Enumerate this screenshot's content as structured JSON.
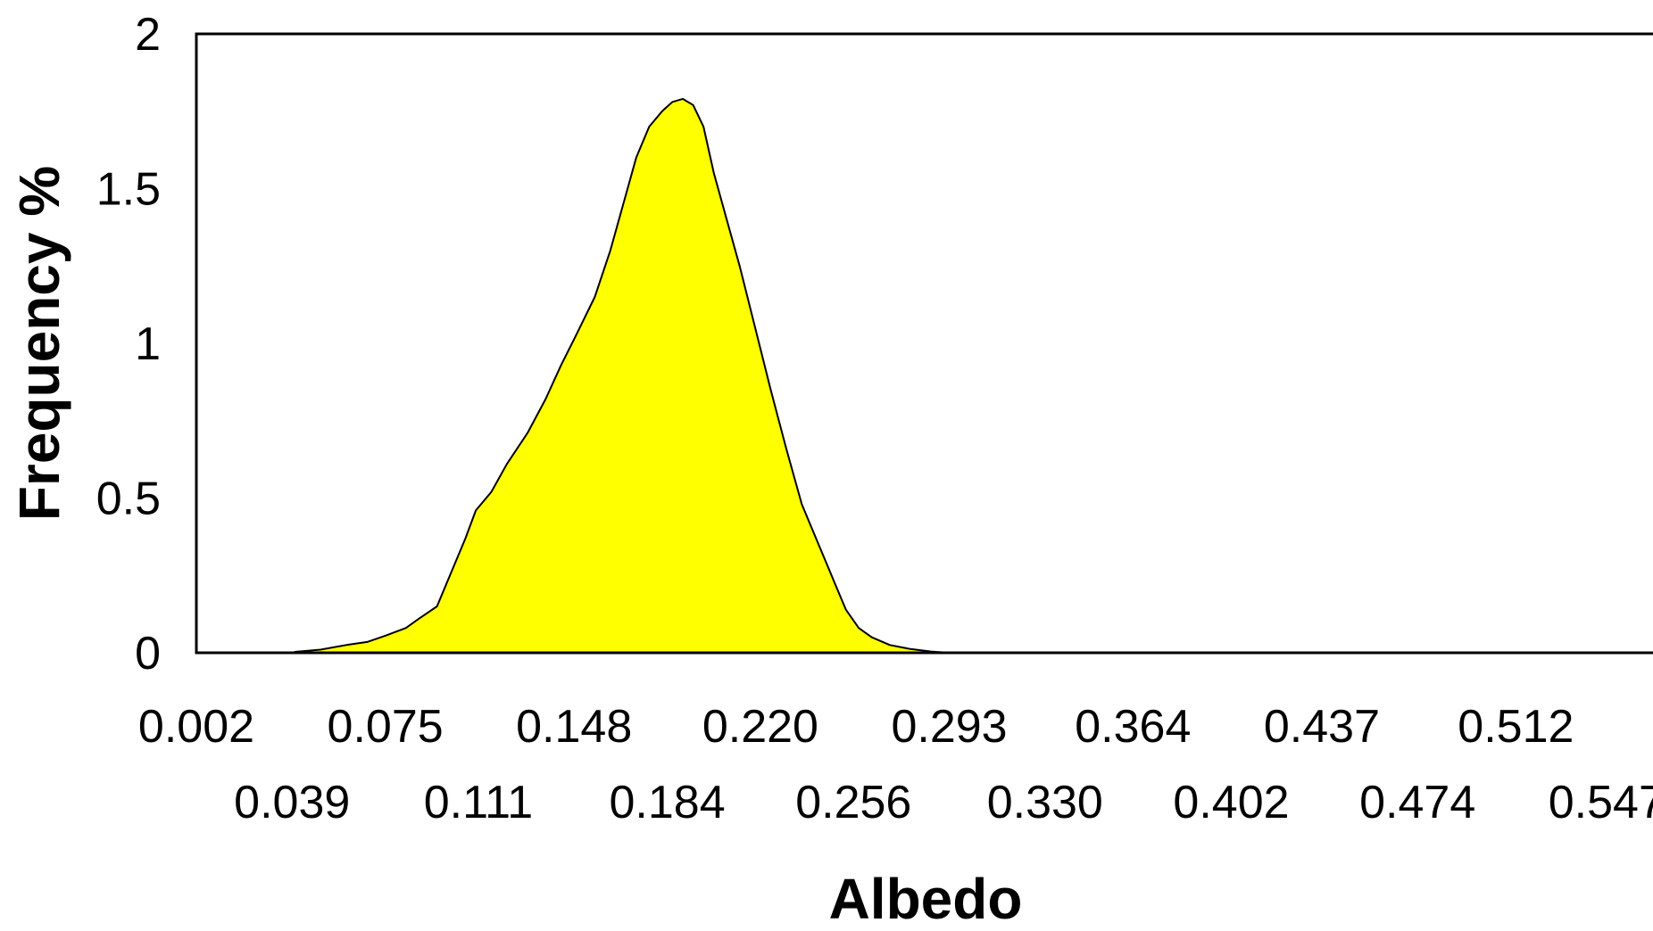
{
  "chart_data": {
    "type": "area",
    "xlabel": "Albedo",
    "ylabel": "Frequency %",
    "xlim": [
      0.002,
      0.565
    ],
    "ylim": [
      0,
      2
    ],
    "y_ticks": [
      "0",
      "0.5",
      "1",
      "1.5",
      "2"
    ],
    "x_ticks_row1": [
      "0.002",
      "0.075",
      "0.148",
      "0.220",
      "0.293",
      "0.364",
      "0.437",
      "0.512"
    ],
    "x_ticks_row2": [
      "0.039",
      "0.111",
      "0.184",
      "0.256",
      "0.330",
      "0.402",
      "0.474",
      "0.547"
    ],
    "grid": false,
    "legend": "none",
    "fill_color": "#ffff00",
    "line_color": "#000000",
    "series": [
      {
        "x": [
          0.04,
          0.05,
          0.06,
          0.068,
          0.075,
          0.083,
          0.088,
          0.095,
          0.1,
          0.106,
          0.11,
          0.116,
          0.122,
          0.13,
          0.137,
          0.143,
          0.149,
          0.156,
          0.162,
          0.167,
          0.172,
          0.177,
          0.182,
          0.186,
          0.19,
          0.194,
          0.198,
          0.202,
          0.207,
          0.212,
          0.218,
          0.224,
          0.23,
          0.236,
          0.242,
          0.248,
          0.253,
          0.258,
          0.263,
          0.27,
          0.278,
          0.286,
          0.293
        ],
        "y": [
          0.003,
          0.01,
          0.025,
          0.035,
          0.055,
          0.08,
          0.11,
          0.15,
          0.25,
          0.37,
          0.46,
          0.52,
          0.61,
          0.71,
          0.82,
          0.93,
          1.03,
          1.15,
          1.3,
          1.45,
          1.6,
          1.7,
          1.75,
          1.78,
          1.79,
          1.77,
          1.7,
          1.55,
          1.4,
          1.25,
          1.05,
          0.85,
          0.66,
          0.48,
          0.36,
          0.24,
          0.14,
          0.08,
          0.05,
          0.025,
          0.012,
          0.004,
          0.0
        ]
      }
    ]
  }
}
